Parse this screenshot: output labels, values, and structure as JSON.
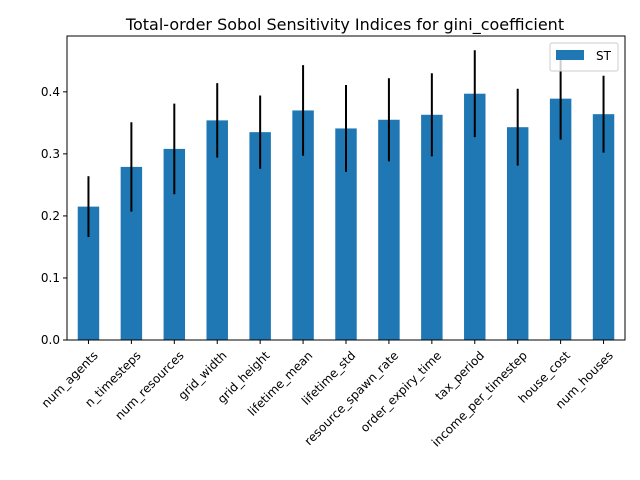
{
  "chart_data": {
    "type": "bar",
    "title": "Total-order Sobol Sensitivity Indices for gini_coefficient",
    "xlabel": "",
    "ylabel": "",
    "categories": [
      "num_agents",
      "n_timesteps",
      "num_resources",
      "grid_width",
      "grid_height",
      "lifetime_mean",
      "lifetime_std",
      "resource_spawn_rate",
      "order_expiry_time",
      "tax_period",
      "income_per_timestep",
      "house_cost",
      "num_houses"
    ],
    "series": [
      {
        "name": "ST",
        "color": "#1f77b4",
        "values": [
          0.215,
          0.279,
          0.308,
          0.354,
          0.335,
          0.37,
          0.341,
          0.355,
          0.363,
          0.397,
          0.343,
          0.389,
          0.364
        ],
        "error": [
          0.049,
          0.072,
          0.073,
          0.06,
          0.059,
          0.073,
          0.07,
          0.067,
          0.067,
          0.07,
          0.062,
          0.066,
          0.062
        ]
      }
    ],
    "ylim": [
      0,
      0.49
    ],
    "yticks": [
      0.0,
      0.1,
      0.2,
      0.3,
      0.4
    ],
    "ytick_labels": [
      "0.0",
      "0.1",
      "0.2",
      "0.3",
      "0.4"
    ],
    "error_color": "#000000",
    "grid": false,
    "legend_position": "upper-right"
  }
}
